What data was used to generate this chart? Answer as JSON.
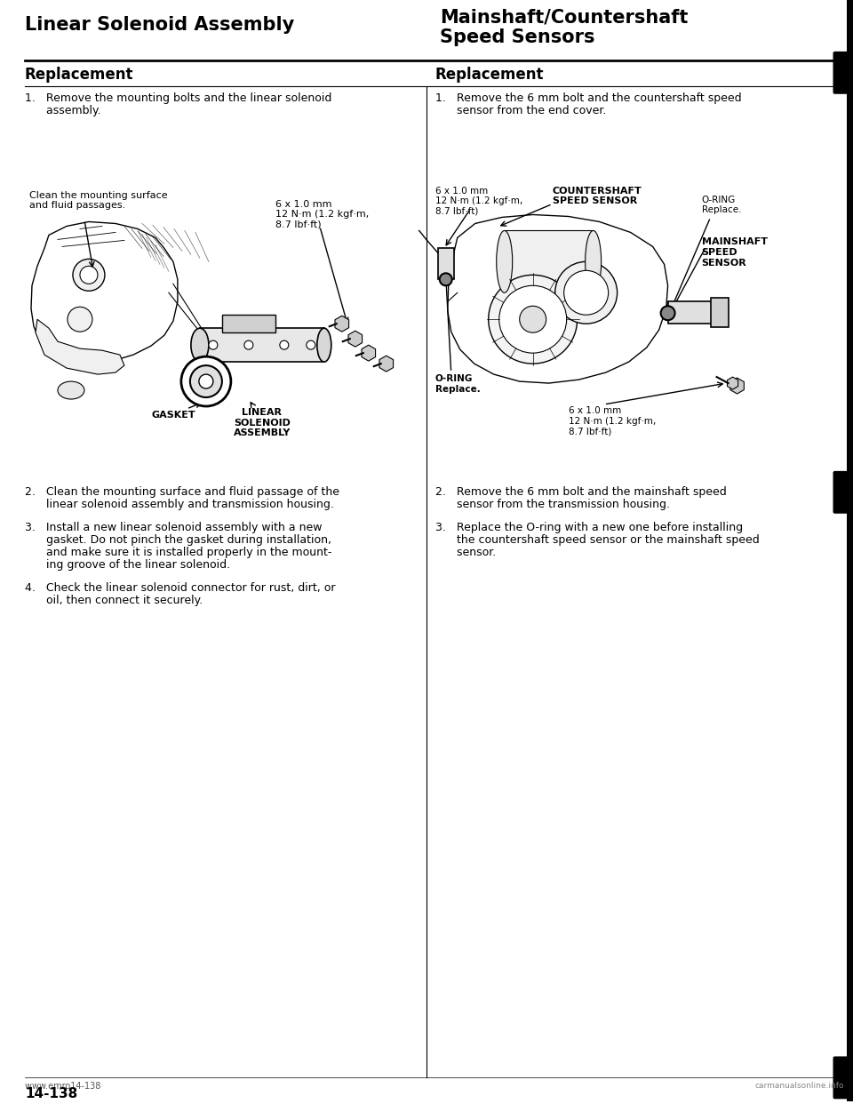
{
  "page_width": 9.6,
  "page_height": 12.42,
  "bg_color": "#ffffff",
  "left_title": "Linear Solenoid Assembly",
  "right_title_line1": "Mainshaft/Countershaft",
  "right_title_line2": "Speed Sensors",
  "section_left": "Replacement",
  "section_right": "Replacement",
  "step1_left_line1": "1.   Remove the mounting bolts and the linear solenoid",
  "step1_left_line2": "      assembly.",
  "step2_left_line1": "2.   Clean the mounting surface and fluid passage of the",
  "step2_left_line2": "      linear solenoid assembly and transmission housing.",
  "step3_left_line1": "3.   Install a new linear solenoid assembly with a new",
  "step3_left_line2": "      gasket. Do not pinch the gasket during installation,",
  "step3_left_line3": "      and make sure it is installed properly in the mount-",
  "step3_left_line4": "      ing groove of the linear solenoid.",
  "step4_left_line1": "4.   Check the linear solenoid connector for rust, dirt, or",
  "step4_left_line2": "      oil, then connect it securely.",
  "step1_right_line1": "1.   Remove the 6 mm bolt and the countershaft speed",
  "step1_right_line2": "      sensor from the end cover.",
  "step2_right_line1": "2.   Remove the 6 mm bolt and the mainshaft speed",
  "step2_right_line2": "      sensor from the transmission housing.",
  "step3_right_line1": "3.   Replace the O-ring with a new one before installing",
  "step3_right_line2": "      the countershaft speed sensor or the mainshaft speed",
  "step3_right_line3": "      sensor.",
  "clean_note": "Clean the mounting surface\nand fluid passages.",
  "bolt_note_left": "6 x 1.0 mm\n12 N·m (1.2 kgf·m,\n8.7 lbf·ft)",
  "gasket_label": "GASKET",
  "assembly_label": "LINEAR\nSOLENOID\nASSEMBLY",
  "bolt_note_right_top": "6 x 1.0 mm\n12 N·m (1.2 kgf·m,\n8.7 lbf·ft)",
  "countershaft_label": "COUNTERSHAFT\nSPEED SENSOR",
  "oring_top_label": "O-RING\nReplace.",
  "mainshaft_label": "MAINSHAFT\nSPEED\nSENSOR",
  "oring_bottom_label": "O-RING\nReplace.",
  "bolt_note_right_bottom": "6 x 1.0 mm\n12 N·m (1.2 kgf·m,\n8.7 lbf·ft)",
  "footer_page": "14-138",
  "footer_url": "www.em⁠ro14-138",
  "footer_site": "carmanualsonline.info",
  "black": "#000000",
  "gray_light": "#d8d8d8",
  "gray_mid": "#aaaaaa",
  "white": "#ffffff"
}
